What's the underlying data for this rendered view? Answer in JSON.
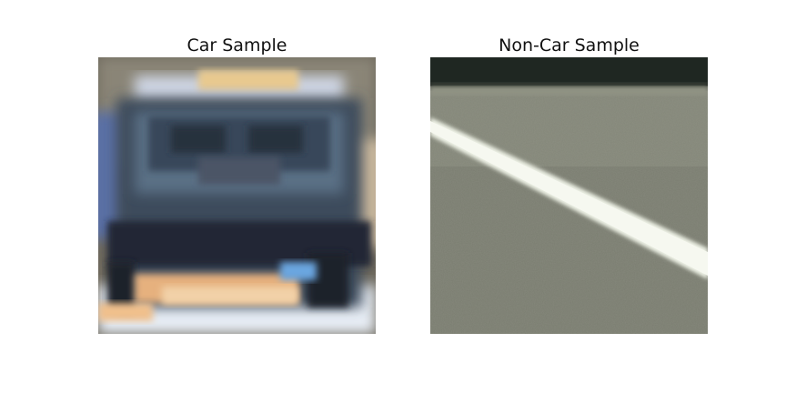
{
  "figure": {
    "panels": [
      {
        "title": "Car Sample",
        "image": "blurry rear view of a car, 64x64 thumbnail"
      },
      {
        "title": "Non-Car Sample",
        "image": "gray road surface with white lane line"
      }
    ]
  }
}
